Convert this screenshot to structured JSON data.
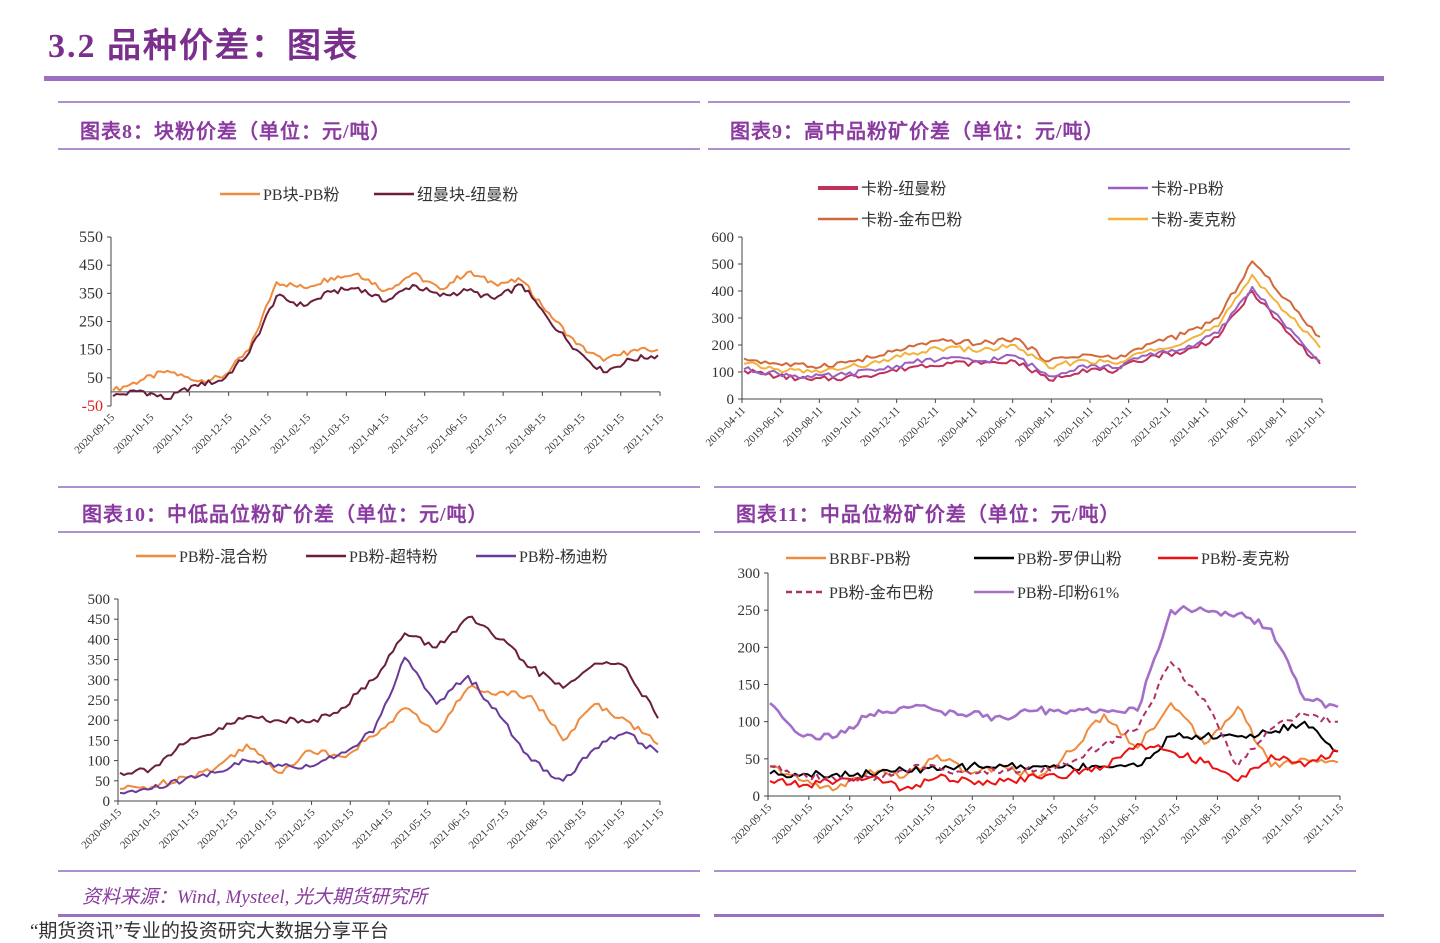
{
  "section_title": "3.2 品种价差：图表",
  "source": "资料来源：Wind, Mysteel, 光大期货研究所",
  "footer": "“期货资讯”专业的投资研究大数据分享平台",
  "colors": {
    "accent": "#8a3aa0",
    "rule": "#9a6fc4"
  },
  "chart_data": [
    {
      "id": "c8",
      "title": "图表8：块粉价差（单位：元/吨）",
      "type": "line",
      "ylim": [
        -50,
        550
      ],
      "yticks": [
        "550",
        "450",
        "350",
        "250",
        "150",
        "50",
        "-50"
      ],
      "xticks": [
        "2020-09-15",
        "2020-10-15",
        "2020-11-15",
        "2020-12-15",
        "2021-01-15",
        "2021-02-15",
        "2021-03-15",
        "2021-04-15",
        "2021-05-15",
        "2021-06-15",
        "2021-07-15",
        "2021-08-15",
        "2021-09-15",
        "2021-10-15",
        "2021-11-15"
      ],
      "series": [
        {
          "name": "PB块-PB粉",
          "color": "#f08a3c",
          "values": [
            5,
            40,
            75,
            40,
            50,
            150,
            390,
            370,
            405,
            420,
            360,
            420,
            365,
            425,
            385,
            395,
            280,
            170,
            110,
            145,
            150
          ]
        },
        {
          "name": "纽曼块-纽曼粉",
          "color": "#6b1e3a",
          "values": [
            -15,
            5,
            -25,
            25,
            40,
            140,
            340,
            305,
            355,
            370,
            320,
            380,
            340,
            360,
            330,
            380,
            255,
            150,
            70,
            115,
            130
          ]
        }
      ]
    },
    {
      "id": "c9",
      "title": "图表9：高中品粉矿价差（单位：元/吨）",
      "type": "line",
      "ylim": [
        0,
        600
      ],
      "yticks": [
        "600",
        "500",
        "400",
        "300",
        "200",
        "100",
        "0"
      ],
      "xticks": [
        "2019-04-11",
        "2019-06-11",
        "2019-08-11",
        "2019-10-11",
        "2019-12-11",
        "2020-02-11",
        "2020-04-11",
        "2020-06-11",
        "2020-08-11",
        "2020-10-11",
        "2020-12-11",
        "2021-02-11",
        "2021-04-11",
        "2021-06-11",
        "2021-08-11",
        "2021-10-11"
      ],
      "series": [
        {
          "name": "卡粉-纽曼粉",
          "color": "#c0305a",
          "values": [
            105,
            85,
            70,
            80,
            95,
            120,
            135,
            130,
            140,
            70,
            110,
            105,
            160,
            175,
            230,
            400,
            250,
            130
          ]
        },
        {
          "name": "卡粉-PB粉",
          "color": "#9b5fc0",
          "values": [
            110,
            95,
            80,
            90,
            110,
            135,
            150,
            140,
            160,
            85,
            125,
            115,
            170,
            185,
            245,
            415,
            265,
            140
          ]
        },
        {
          "name": "卡粉-金布巴粉",
          "color": "#d2693a",
          "values": [
            150,
            130,
            120,
            135,
            160,
            195,
            215,
            205,
            225,
            140,
            165,
            150,
            205,
            240,
            300,
            510,
            370,
            230
          ]
        },
        {
          "name": "卡粉-麦克粉",
          "color": "#f2b33c",
          "values": [
            130,
            110,
            100,
            115,
            135,
            170,
            190,
            180,
            200,
            115,
            145,
            130,
            185,
            210,
            270,
            460,
            320,
            190
          ]
        }
      ]
    },
    {
      "id": "c10",
      "title": "图表10：中低品位粉矿价差（单位：元/吨）",
      "type": "line",
      "ylim": [
        0,
        500
      ],
      "yticks": [
        "500",
        "450",
        "400",
        "350",
        "300",
        "250",
        "200",
        "150",
        "100",
        "50",
        "0"
      ],
      "xticks": [
        "2020-09-15",
        "2020-10-15",
        "2020-11-15",
        "2020-12-15",
        "2021-01-15",
        "2021-02-15",
        "2021-03-15",
        "2021-04-15",
        "2021-05-15",
        "2021-06-15",
        "2021-07-15",
        "2021-08-15",
        "2021-09-15",
        "2021-10-15",
        "2021-11-15"
      ],
      "series": [
        {
          "name": "PB粉-混合粉",
          "color": "#f08a3c",
          "values": [
            30,
            35,
            60,
            80,
            140,
            70,
            125,
            110,
            160,
            230,
            170,
            280,
            270,
            260,
            150,
            240,
            200,
            140
          ]
        },
        {
          "name": "PB粉-超特粉",
          "color": "#6b1e3a",
          "values": [
            70,
            80,
            140,
            170,
            210,
            200,
            195,
            230,
            300,
            415,
            380,
            455,
            400,
            330,
            280,
            340,
            330,
            205
          ]
        },
        {
          "name": "PB粉-杨迪粉",
          "color": "#6a3a9a",
          "values": [
            20,
            30,
            50,
            70,
            100,
            90,
            85,
            120,
            170,
            355,
            240,
            310,
            210,
            100,
            50,
            130,
            170,
            120
          ]
        }
      ]
    },
    {
      "id": "c11",
      "title": "图表11：中品位粉矿价差（单位：元/吨）",
      "type": "line",
      "ylim": [
        0,
        300
      ],
      "yticks": [
        "300",
        "250",
        "200",
        "150",
        "100",
        "50",
        "0"
      ],
      "xticks": [
        "2020-09-15",
        "2020-10-15",
        "2020-11-15",
        "2020-12-15",
        "2021-01-15",
        "2021-02-15",
        "2021-03-15",
        "2021-04-15",
        "2021-05-15",
        "2021-06-15",
        "2021-07-15",
        "2021-08-15",
        "2021-09-15",
        "2021-10-15",
        "2021-11-15"
      ],
      "series": [
        {
          "name": "BRBF-PB粉",
          "color": "#f08a3c",
          "dash": false,
          "values": [
            40,
            20,
            10,
            35,
            25,
            55,
            30,
            40,
            25,
            60,
            110,
            65,
            125,
            70,
            120,
            40,
            50,
            45
          ]
        },
        {
          "name": "PB粉-罗伊山粉",
          "color": "#000000",
          "dash": false,
          "values": [
            30,
            30,
            30,
            30,
            35,
            35,
            40,
            40,
            40,
            40,
            40,
            40,
            80,
            80,
            80,
            85,
            100,
            60
          ]
        },
        {
          "name": "PB粉-麦克粉",
          "color": "#ee1111",
          "dash": false,
          "values": [
            20,
            15,
            20,
            25,
            10,
            25,
            20,
            20,
            25,
            30,
            40,
            70,
            60,
            45,
            20,
            55,
            40,
            60
          ]
        },
        {
          "name": "PB粉-金布巴粉",
          "color": "#b2306a",
          "dash": true,
          "values": [
            40,
            30,
            20,
            25,
            35,
            40,
            30,
            35,
            35,
            45,
            70,
            90,
            180,
            130,
            40,
            90,
            110,
            100
          ]
        },
        {
          "name": "PB粉-印粉61%",
          "color": "#a36fc8",
          "dash": false,
          "values": [
            125,
            80,
            80,
            110,
            120,
            115,
            110,
            105,
            115,
            115,
            115,
            115,
            250,
            250,
            245,
            225,
            130,
            120
          ]
        }
      ]
    }
  ]
}
